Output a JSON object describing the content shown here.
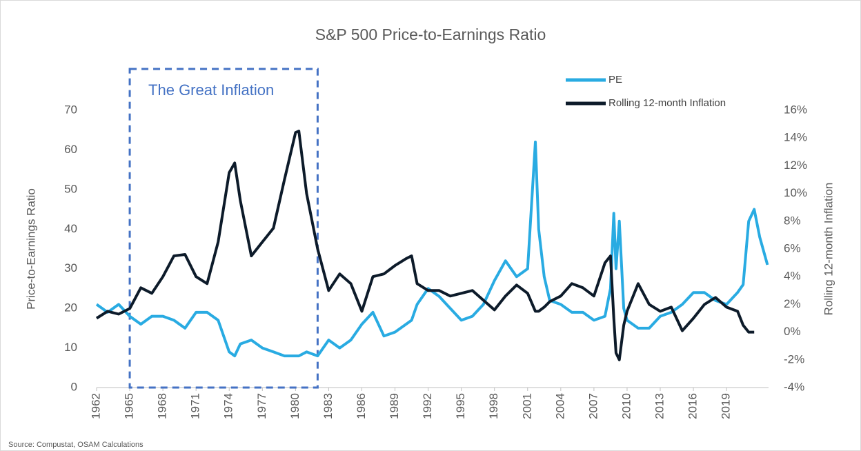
{
  "chart_data": {
    "type": "line",
    "title": "S&P 500 Price-to-Earnings Ratio",
    "ylabel": "Price-to-Earnings Ratio",
    "y2label": "Rolling 12-month Inflation",
    "source": "Source: Compustat, OSAM Calculations",
    "annotation": {
      "text": "The Great Inflation",
      "x": [
        1965,
        1982
      ]
    },
    "legend": "top-right",
    "x": [
      1962,
      1963,
      1964,
      1965,
      1966,
      1967,
      1968,
      1969,
      1970,
      1971,
      1972,
      1973,
      1974,
      1974.5,
      1975,
      1976,
      1977,
      1978,
      1979,
      1980,
      1980.3,
      1981,
      1982,
      1983,
      1984,
      1985,
      1986,
      1987,
      1988,
      1989,
      1990,
      1990.5,
      1991,
      1992,
      1993,
      1994,
      1995,
      1996,
      1997,
      1998,
      1999,
      2000,
      2001,
      2001.7,
      2002,
      2002.5,
      2003,
      2004,
      2005,
      2006,
      2007,
      2008,
      2008.5,
      2008.8,
      2009,
      2009.3,
      2009.7,
      2010,
      2011,
      2012,
      2013,
      2014,
      2015,
      2016,
      2017,
      2018,
      2019,
      2020,
      2020.5,
      2021,
      2021.5,
      2022,
      2022.7
    ],
    "xlim": [
      1962,
      2022.8
    ],
    "xticks": [
      1962,
      1965,
      1968,
      1971,
      1974,
      1977,
      1980,
      1983,
      1986,
      1989,
      1992,
      1995,
      1998,
      2001,
      2004,
      2007,
      2010,
      2013,
      2016,
      2019
    ],
    "ylim": [
      0,
      70
    ],
    "yticks": [
      0,
      10,
      20,
      30,
      40,
      50,
      60,
      70
    ],
    "y2lim": [
      -4,
      16
    ],
    "y2ticks": [
      {
        "value": -4,
        "label": "-4%"
      },
      {
        "value": -2,
        "label": "-2%"
      },
      {
        "value": 0,
        "label": "0%"
      },
      {
        "value": 2,
        "label": "2%"
      },
      {
        "value": 4,
        "label": "4%"
      },
      {
        "value": 6,
        "label": "6%"
      },
      {
        "value": 8,
        "label": "8%"
      },
      {
        "value": 10,
        "label": "10%"
      },
      {
        "value": 12,
        "label": "12%"
      },
      {
        "value": 14,
        "label": "14%"
      },
      {
        "value": 16,
        "label": "16%"
      }
    ],
    "series": [
      {
        "name": "PE",
        "color": "#29abe2",
        "values": [
          21,
          19,
          21,
          18,
          16,
          18,
          18,
          17,
          15,
          19,
          19,
          17,
          9,
          8,
          11,
          12,
          10,
          9,
          8,
          8,
          8,
          9,
          8,
          12,
          10,
          12,
          16,
          19,
          13,
          14,
          16,
          17,
          21,
          25,
          23,
          20,
          17,
          18,
          21,
          27,
          32,
          28,
          30,
          62,
          40,
          28,
          22,
          21,
          19,
          19,
          17,
          18,
          25,
          44,
          30,
          42,
          20,
          17,
          15,
          15,
          18,
          19,
          21,
          24,
          24,
          22,
          21,
          24,
          26,
          42,
          45,
          38,
          31
        ]
      },
      {
        "name": "Rolling 12-month Inflation",
        "color": "#0d1b2a",
        "axis": "y2",
        "values": [
          1.0,
          1.5,
          1.3,
          1.7,
          3.2,
          2.8,
          4.0,
          5.5,
          5.6,
          4.0,
          3.5,
          6.5,
          11.5,
          12.2,
          9.5,
          5.5,
          6.5,
          7.5,
          11.0,
          14.4,
          14.5,
          10.0,
          6.0,
          3.0,
          4.2,
          3.5,
          1.5,
          4.0,
          4.2,
          4.8,
          5.3,
          5.5,
          3.5,
          3.0,
          3.0,
          2.6,
          2.8,
          3.0,
          2.3,
          1.6,
          2.6,
          3.4,
          2.8,
          1.5,
          1.5,
          1.8,
          2.2,
          2.6,
          3.5,
          3.2,
          2.6,
          5.0,
          5.5,
          1.0,
          -1.5,
          -2.0,
          0.5,
          1.5,
          3.5,
          2.0,
          1.5,
          1.8,
          0.1,
          1.0,
          2.0,
          2.5,
          1.8,
          1.5,
          0.5,
          0.0,
          0.0,
          null,
          null
        ]
      }
    ]
  }
}
